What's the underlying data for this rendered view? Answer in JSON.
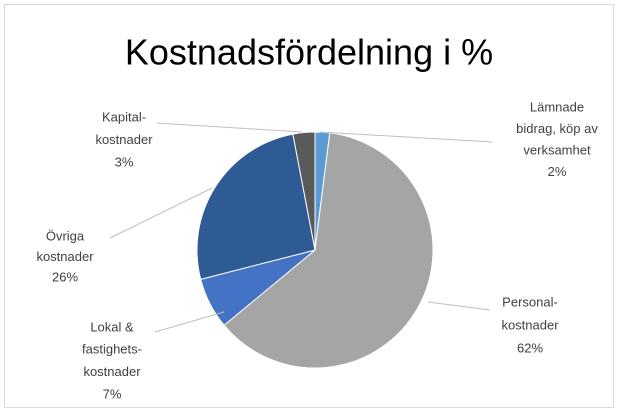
{
  "chart_data": {
    "type": "pie",
    "title": "Kostnadsfördelning i %",
    "categories": [
      [
        "Lämnade",
        "bidrag, köp av",
        "verksamhet"
      ],
      [
        "Personal-",
        "kostnader"
      ],
      [
        "Lokal &",
        "fastighets-",
        "kostnader"
      ],
      [
        "Övriga",
        "kostnader"
      ],
      [
        "Kapital-",
        "kostnader"
      ]
    ],
    "values": [
      2,
      62,
      7,
      26,
      3
    ],
    "value_labels": [
      "2%",
      "62%",
      "7%",
      "26%",
      "3%"
    ],
    "colors": [
      "#5b9bd5",
      "#a5a5a5",
      "#4472c4",
      "#2e5b93",
      "#5a5a5a"
    ]
  }
}
